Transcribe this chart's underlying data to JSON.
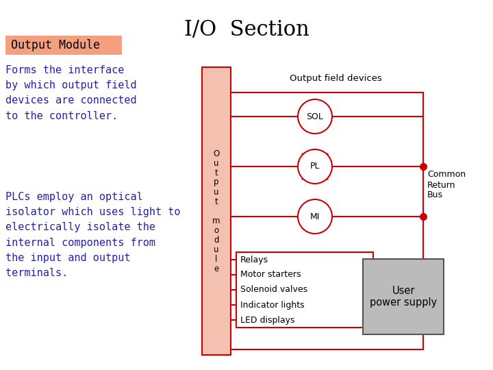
{
  "title": "I/O  Section",
  "title_fontsize": 22,
  "title_color": "#000000",
  "bg_color": "#ffffff",
  "output_module_label": "Output Module",
  "output_module_bg": "#F4A080",
  "output_module_text_color": "#000000",
  "text1": "Forms the interface\nby which output field\ndevices are connected\nto the controller.",
  "text2": "PLCs employ an optical\nisolator which uses light to\nelectrically isolate the\ninternal components from\nthe input and output\nterminals.",
  "text_color": "#2222AA",
  "text_fontsize": 11,
  "diagram_label": "Output field devices",
  "module_box_color": "#F4C0B0",
  "module_text": "O\nu\nt\np\nu\nt\n \nm\no\nd\nu\nl\ne",
  "red_color": "#CC0000",
  "dot_color": "#CC0000",
  "common_return_label": "Common\nReturn\nBus",
  "user_power_label": "User\npower supply",
  "user_power_bg": "#BBBBBB",
  "list_items": [
    "Relays",
    "Motor starters",
    "Solenoid valves",
    "Indicator lights",
    "LED displays"
  ]
}
